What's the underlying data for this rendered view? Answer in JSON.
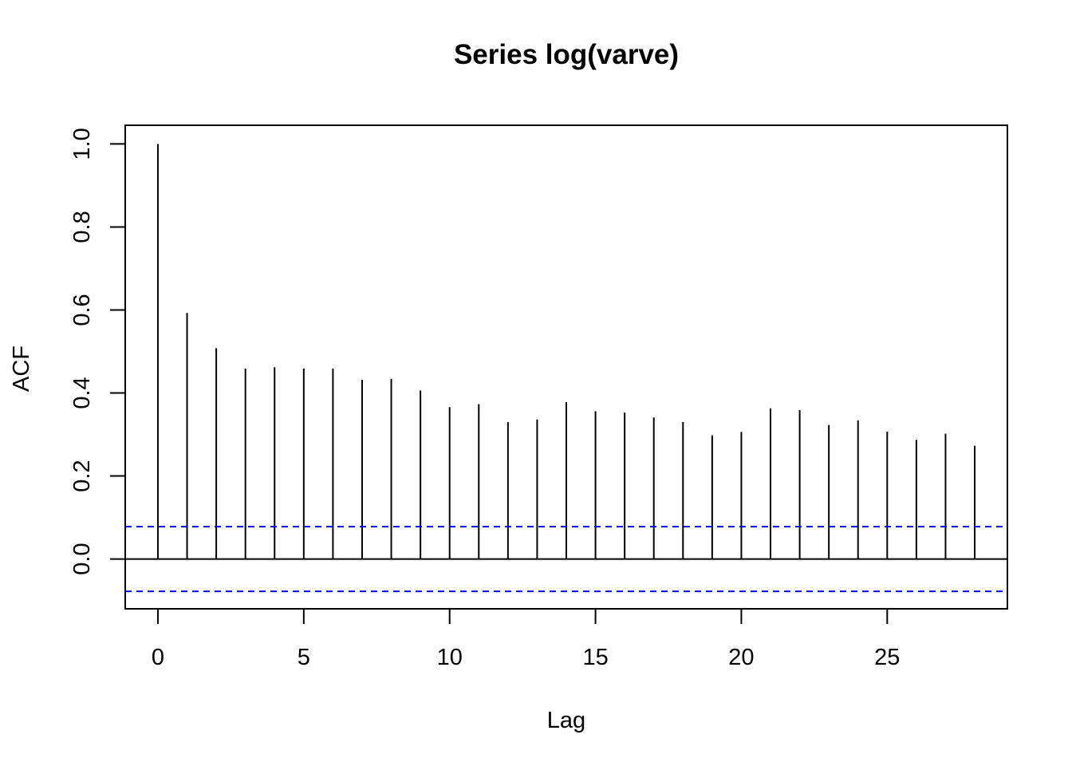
{
  "chart_data": {
    "type": "bar",
    "title": "Series  log(varve)",
    "xlabel": "Lag",
    "ylabel": "ACF",
    "xlim": [
      -1.12,
      29.12
    ],
    "ylim": [
      -0.12,
      1.045
    ],
    "x_ticks": [
      0,
      5,
      10,
      15,
      20,
      25
    ],
    "y_ticks": [
      0.0,
      0.2,
      0.4,
      0.6,
      0.8,
      1.0
    ],
    "y_tick_labels": [
      "0.0",
      "0.2",
      "0.4",
      "0.6",
      "0.8",
      "1.0"
    ],
    "lags": [
      0,
      1,
      2,
      3,
      4,
      5,
      6,
      7,
      8,
      9,
      10,
      11,
      12,
      13,
      14,
      15,
      16,
      17,
      18,
      19,
      20,
      21,
      22,
      23,
      24,
      25,
      26,
      27,
      28
    ],
    "values": [
      1.0,
      0.593,
      0.508,
      0.459,
      0.462,
      0.459,
      0.459,
      0.432,
      0.434,
      0.406,
      0.366,
      0.373,
      0.33,
      0.336,
      0.378,
      0.356,
      0.353,
      0.341,
      0.33,
      0.298,
      0.306,
      0.363,
      0.359,
      0.323,
      0.334,
      0.307,
      0.287,
      0.302,
      0.273
    ],
    "confidence_bound": 0.078,
    "zero_line": 0.0,
    "colors": {
      "bars": "#000000",
      "ci_lines": "#0000ff",
      "frame": "#000000"
    },
    "grid": false,
    "legend": "none"
  }
}
